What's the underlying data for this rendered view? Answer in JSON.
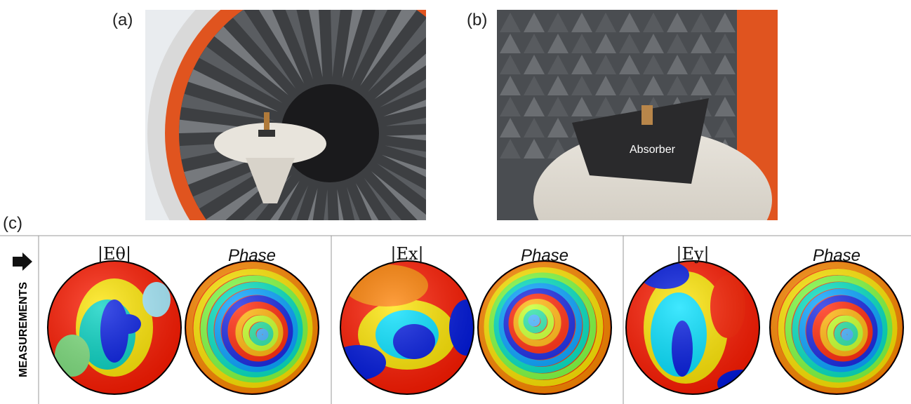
{
  "panels": {
    "a": {
      "label": "(a)"
    },
    "b": {
      "label": "(b)",
      "annotation": "Absorber"
    },
    "c": {
      "label": "(c)",
      "row_label": "MEASUREMENTS",
      "groups": [
        {
          "magnitude": "|Eθ|",
          "phase": "Phase"
        },
        {
          "magnitude": "|Ex|",
          "phase": "Phase"
        },
        {
          "magnitude": "|Ey|",
          "phase": "Phase"
        }
      ]
    }
  }
}
